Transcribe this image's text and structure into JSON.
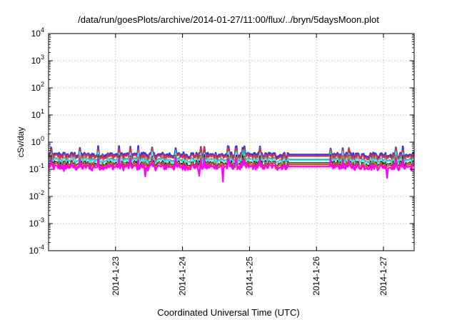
{
  "chart_data": {
    "type": "line",
    "title": "/data/run/goesPlots/archive/2014-01-27/11:00/flux/../bryn/5daysMoon.plot",
    "xlabel": "Coordinated Universal Time (UTC)",
    "ylabel": "cSv/day",
    "yscale": "log",
    "ylim": [
      0.0001,
      10000
    ],
    "yticks": [
      {
        "value": 0.0001,
        "base": "10",
        "exp": "-4"
      },
      {
        "value": 0.001,
        "base": "10",
        "exp": "-3"
      },
      {
        "value": 0.01,
        "base": "10",
        "exp": "-2"
      },
      {
        "value": 0.1,
        "base": "10",
        "exp": "-1"
      },
      {
        "value": 1,
        "base": "10",
        "exp": "0"
      },
      {
        "value": 10,
        "base": "10",
        "exp": "1"
      },
      {
        "value": 100,
        "base": "10",
        "exp": "2"
      },
      {
        "value": 1000,
        "base": "10",
        "exp": "3"
      },
      {
        "value": 10000,
        "base": "10",
        "exp": "4"
      }
    ],
    "xlim": [
      "2014-01-22 00:00",
      "2014-01-27 11:00"
    ],
    "xticks": [
      "2014-1-23",
      "2014-1-24",
      "2014-1-25",
      "2014-1-26",
      "2014-1-27"
    ],
    "grid": true,
    "data_gap": {
      "start": "2014-01-25 14:00",
      "end": "2014-01-26 05:00"
    },
    "series": [
      {
        "color": "#3333ff",
        "baseline": 0.33,
        "amplitude": 0.28,
        "width": 2.6
      },
      {
        "color": "#e53030",
        "baseline": 0.29,
        "amplitude": 0.26,
        "width": 2.0
      },
      {
        "color": "#22bbaa",
        "baseline": 0.22,
        "amplitude": 0.2,
        "width": 2.0
      },
      {
        "color": "#66ddee",
        "baseline": 0.2,
        "amplitude": 0.18,
        "width": 1.5
      },
      {
        "color": "#111111",
        "baseline": 0.165,
        "amplitude": 0.14,
        "width": 1.2
      },
      {
        "color": "#cc9900",
        "baseline": 0.15,
        "amplitude": 0.12,
        "width": 1.2
      },
      {
        "color": "#ee2222",
        "baseline": 0.14,
        "amplitude": 0.1,
        "width": 1.2
      },
      {
        "color": "#ff00ff",
        "baseline": 0.12,
        "amplitude": 0.1,
        "width": 2.2,
        "dips": [
          {
            "date": "2014-01-22 05:30",
            "value": 0.085
          },
          {
            "date": "2014-01-22 15:40",
            "value": 0.09
          },
          {
            "date": "2014-01-23 10:40",
            "value": 0.055
          },
          {
            "date": "2014-01-24 06:00",
            "value": 0.058
          },
          {
            "date": "2014-01-24 14:30",
            "value": 0.035
          },
          {
            "date": "2014-01-27 01:20",
            "value": 0.048
          }
        ]
      }
    ]
  }
}
